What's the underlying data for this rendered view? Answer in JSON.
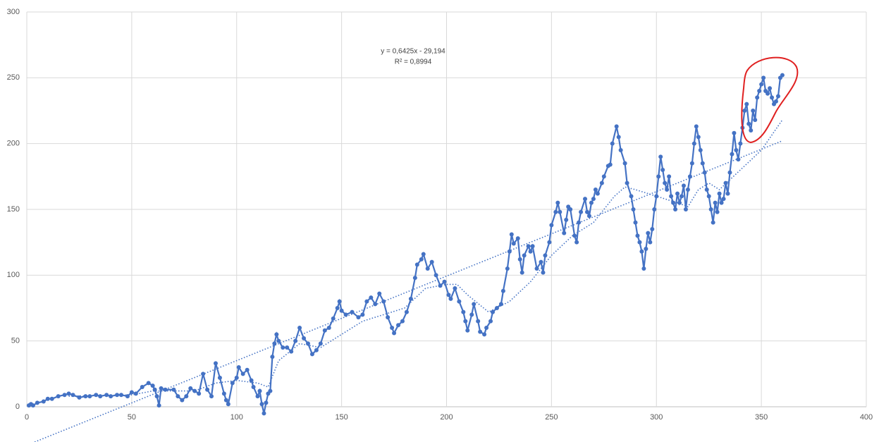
{
  "chart_data": {
    "type": "line",
    "annotations": [
      "y = 0,6425x - 29,194",
      "R² = 0,8994"
    ],
    "xlim": [
      0,
      400
    ],
    "xticks": [
      0,
      50,
      100,
      150,
      200,
      250,
      300,
      350,
      400
    ],
    "ylim": [
      0,
      300
    ],
    "yticks": [
      0,
      50,
      100,
      150,
      200,
      250,
      300
    ],
    "grid": true,
    "series": [
      {
        "color": "#4472c4",
        "style": "line-markers",
        "x": [
          1,
          2,
          3,
          5,
          8,
          10,
          12,
          15,
          18,
          20,
          22,
          25,
          28,
          30,
          33,
          35,
          38,
          40,
          43,
          45,
          48,
          50,
          52,
          55,
          58,
          60,
          61,
          62,
          63,
          64,
          66,
          70,
          72,
          74,
          76,
          78,
          80,
          82,
          84,
          86,
          88,
          90,
          92,
          94,
          95,
          96,
          98,
          100,
          101,
          103,
          105,
          107,
          108,
          110,
          111,
          112,
          113,
          114,
          115,
          116,
          117,
          118,
          119,
          120,
          122,
          124,
          126,
          128,
          130,
          132,
          134,
          136,
          138,
          140,
          142,
          144,
          146,
          148,
          149,
          150,
          152,
          155,
          158,
          160,
          162,
          164,
          166,
          168,
          170,
          172,
          174,
          175,
          177,
          179,
          181,
          183,
          185,
          186,
          188,
          189,
          191,
          193,
          195,
          197,
          199,
          201,
          202,
          204,
          206,
          208,
          209,
          210,
          212,
          213,
          215,
          216,
          218,
          219,
          221,
          222,
          224,
          226,
          227,
          229,
          230,
          231,
          232,
          234,
          235,
          236,
          237,
          239,
          240,
          241,
          243,
          245,
          246,
          247,
          249,
          250,
          252,
          253,
          254,
          256,
          257,
          258,
          259,
          261,
          262,
          263,
          264,
          266,
          267,
          268,
          269,
          270,
          271,
          272,
          274,
          275,
          277,
          278,
          279,
          281,
          282,
          283,
          285,
          286,
          288,
          289,
          290,
          291,
          292,
          293,
          294,
          295,
          296,
          297,
          298,
          299,
          300,
          301,
          302,
          303,
          304,
          305,
          306,
          307,
          308,
          309,
          310,
          311,
          312,
          313,
          314,
          315,
          316,
          317,
          318,
          319,
          320,
          321,
          322,
          323,
          324,
          325,
          326,
          327,
          328,
          329,
          330,
          331,
          332,
          333,
          334,
          335,
          336,
          337,
          338,
          339,
          340,
          341,
          342,
          343,
          344,
          345,
          346,
          347,
          348,
          349,
          350,
          351,
          352,
          353,
          354,
          355,
          356,
          357,
          358,
          359,
          360
        ],
        "values": [
          1,
          2,
          1,
          3,
          4,
          6,
          6,
          8,
          9,
          10,
          9,
          7,
          8,
          8,
          9,
          8,
          9,
          8,
          9,
          9,
          8,
          11,
          10,
          15,
          18,
          16,
          13,
          8,
          1,
          14,
          13,
          13,
          8,
          5,
          8,
          14,
          12,
          10,
          25,
          13,
          8,
          33,
          22,
          10,
          5,
          2,
          18,
          22,
          30,
          25,
          28,
          20,
          15,
          8,
          12,
          2,
          -5,
          3,
          10,
          12,
          38,
          48,
          55,
          50,
          45,
          45,
          42,
          50,
          60,
          52,
          48,
          40,
          43,
          48,
          58,
          60,
          67,
          75,
          80,
          73,
          70,
          72,
          68,
          70,
          80,
          83,
          78,
          86,
          80,
          68,
          60,
          56,
          62,
          65,
          72,
          82,
          98,
          108,
          112,
          116,
          105,
          110,
          100,
          92,
          95,
          85,
          82,
          90,
          80,
          72,
          65,
          58,
          70,
          78,
          65,
          57,
          55,
          60,
          65,
          72,
          75,
          78,
          88,
          105,
          118,
          131,
          124,
          128,
          112,
          102,
          115,
          122,
          118,
          122,
          105,
          110,
          102,
          115,
          125,
          138,
          148,
          155,
          148,
          132,
          142,
          152,
          150,
          130,
          125,
          140,
          148,
          158,
          148,
          145,
          155,
          158,
          165,
          162,
          170,
          175,
          183,
          184,
          200,
          213,
          205,
          195,
          185,
          170,
          160,
          150,
          140,
          130,
          125,
          118,
          105,
          120,
          132,
          125,
          135,
          150,
          160,
          175,
          190,
          180,
          170,
          165,
          175,
          160,
          155,
          150,
          162,
          155,
          160,
          168,
          150,
          165,
          175,
          185,
          200,
          213,
          205,
          195,
          185,
          178,
          165,
          160,
          150,
          140,
          155,
          148,
          162,
          155,
          158,
          170,
          162,
          178,
          192,
          208,
          195,
          188,
          200,
          212,
          225,
          230,
          215,
          210,
          225,
          218,
          235,
          240,
          245,
          250,
          240,
          238,
          242,
          235,
          230,
          232,
          236,
          250,
          252
        ]
      },
      {
        "color": "#4472c4",
        "style": "dotted",
        "x": [
          20,
          50,
          60,
          70,
          80,
          90,
          100,
          110,
          115,
          120,
          130,
          140,
          150,
          160,
          170,
          180,
          190,
          200,
          205,
          210,
          220,
          230,
          240,
          250,
          260,
          270,
          280,
          285,
          290,
          300,
          310,
          315,
          320,
          325,
          330,
          340,
          350,
          360
        ],
        "values": [
          8,
          9,
          12,
          12,
          12,
          18,
          20,
          18,
          15,
          35,
          48,
          45,
          55,
          65,
          70,
          75,
          90,
          93,
          93,
          85,
          72,
          80,
          95,
          115,
          130,
          140,
          160,
          167,
          165,
          160,
          155,
          152,
          165,
          170,
          165,
          180,
          195,
          218
        ]
      },
      {
        "color": "#4472c4",
        "style": "dotted",
        "x": [
          0,
          360
        ],
        "values": [
          -29.194,
          202.106
        ]
      }
    ]
  }
}
